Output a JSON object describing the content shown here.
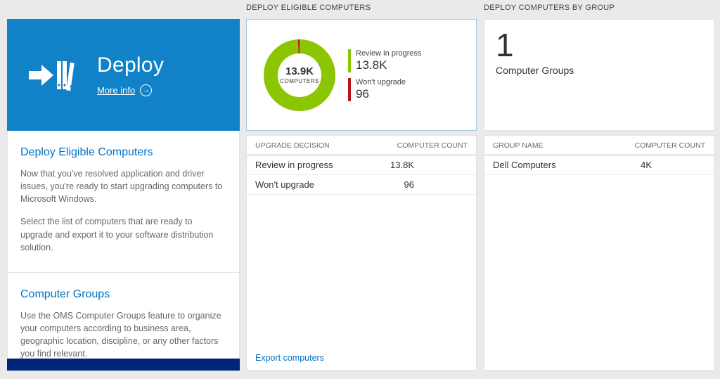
{
  "colors": {
    "accent_blue": "#0072c6",
    "tile_blue": "#1182c8",
    "bar_blue": "#0072c6",
    "green": "#8cc502",
    "red": "#ba141a",
    "footer_navy": "#00247c"
  },
  "left": {
    "tile_title": "Deploy",
    "more_info": "More info",
    "sections": [
      {
        "heading": "Deploy Eligible Computers",
        "p1": "Now that you've resolved application and driver issues, you're ready to start upgrading computers to Microsoft Windows.",
        "p2": "Select the list of computers that are ready to upgrade and export it to your software distribution solution."
      },
      {
        "heading": "Computer Groups",
        "p1": "Use the OMS Computer Groups feature to organize your computers according to business area, geographic location, discipline, or any other factors you find relevant."
      }
    ]
  },
  "middle": {
    "header": "DEPLOY ELIGIBLE COMPUTERS",
    "table": {
      "col1": "UPGRADE DECISION",
      "col2": "COMPUTER COUNT",
      "rows": [
        {
          "label": "Review in progress",
          "value": "13.8K",
          "bar_pct": 100
        },
        {
          "label": "Won't upgrade",
          "value": "96",
          "bar_pct": 2
        }
      ]
    },
    "export_link": "Export computers"
  },
  "right": {
    "header": "DEPLOY COMPUTERS BY GROUP",
    "tile_count": "1",
    "tile_label": "Computer Groups",
    "table": {
      "col1": "GROUP NAME",
      "col2": "COMPUTER COUNT",
      "rows": [
        {
          "label": "Dell Computers",
          "value": "4K",
          "bar_pct": 100
        }
      ]
    }
  },
  "chart_data": {
    "type": "pie",
    "title": "Deploy Eligible Computers",
    "center_value": "13.9K",
    "center_label": "COMPUTERS",
    "legend_position": "right",
    "segments": [
      {
        "label": "Review in progress",
        "value": 13800,
        "display": "13.8K",
        "color": "#8cc502"
      },
      {
        "label": "Won't upgrade",
        "value": 96,
        "display": "96",
        "color": "#ba141a"
      }
    ]
  }
}
